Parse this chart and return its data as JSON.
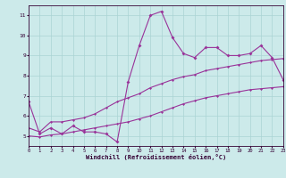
{
  "xlabel": "Windchill (Refroidissement éolien,°C)",
  "xlim": [
    0,
    23
  ],
  "ylim": [
    4.5,
    11.5
  ],
  "yticks": [
    5,
    6,
    7,
    8,
    9,
    10,
    11
  ],
  "xticks": [
    0,
    1,
    2,
    3,
    4,
    5,
    6,
    7,
    8,
    9,
    10,
    11,
    12,
    13,
    14,
    15,
    16,
    17,
    18,
    19,
    20,
    21,
    22,
    23
  ],
  "bg_color": "#cceaea",
  "grid_color": "#aad4d4",
  "line_color": "#993399",
  "curve1_x": [
    0,
    1,
    2,
    3,
    4,
    5,
    6,
    7,
    8,
    9,
    10,
    11,
    12,
    13,
    14,
    15,
    16,
    17,
    18,
    19,
    20,
    21,
    22,
    23
  ],
  "curve1_y": [
    6.7,
    5.1,
    5.4,
    5.1,
    5.5,
    5.2,
    5.2,
    5.1,
    4.7,
    7.7,
    9.5,
    11.0,
    11.2,
    9.9,
    9.1,
    8.9,
    9.4,
    9.4,
    9.0,
    9.0,
    9.1,
    9.5,
    8.9,
    7.8
  ],
  "curve2_x": [
    0,
    1,
    2,
    3,
    4,
    5,
    6,
    7,
    8,
    9,
    10,
    11,
    12,
    13,
    14,
    15,
    16,
    17,
    18,
    19,
    20,
    21,
    22,
    23
  ],
  "curve2_y": [
    5.4,
    5.2,
    5.7,
    5.7,
    5.8,
    5.9,
    6.1,
    6.4,
    6.7,
    6.9,
    7.1,
    7.4,
    7.6,
    7.8,
    7.95,
    8.05,
    8.25,
    8.35,
    8.45,
    8.55,
    8.65,
    8.75,
    8.8,
    8.85
  ],
  "curve3_x": [
    0,
    1,
    2,
    3,
    4,
    5,
    6,
    7,
    8,
    9,
    10,
    11,
    12,
    13,
    14,
    15,
    16,
    17,
    18,
    19,
    20,
    21,
    22,
    23
  ],
  "curve3_y": [
    5.0,
    4.95,
    5.05,
    5.1,
    5.2,
    5.3,
    5.4,
    5.5,
    5.6,
    5.7,
    5.85,
    6.0,
    6.2,
    6.4,
    6.6,
    6.75,
    6.9,
    7.0,
    7.1,
    7.2,
    7.3,
    7.35,
    7.4,
    7.45
  ]
}
